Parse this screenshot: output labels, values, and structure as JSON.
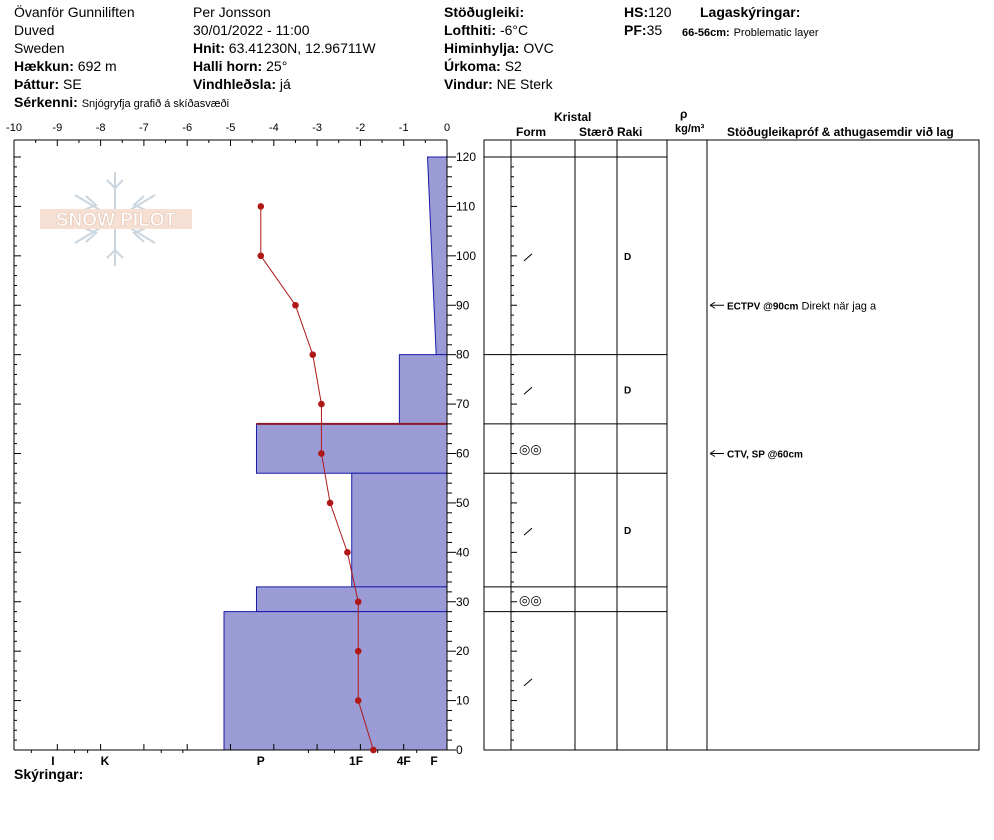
{
  "header": {
    "location": "Övanför Gunniliften",
    "area": "Duved",
    "country": "Sweden",
    "elevation_label": "Hækkun:",
    "elevation": "692 m",
    "aspect_label": "Þáttur:",
    "aspect": "SE",
    "features_label": "Sérkenni:",
    "features": "Snjógryfja grafið á skíðasvæði",
    "observer": "Per Jonsson",
    "datetime": "30/01/2022 - 11:00",
    "coords_label": "Hnit:",
    "coords": "63.41230N, 12.96711W",
    "slope_label": "Halli horn:",
    "slope": "25°",
    "wind_loading_label": "Vindhleðsla:",
    "wind_loading": "já",
    "stability_label": "Stöðugleiki:",
    "stability": "",
    "air_temp_label": "Lofthiti:",
    "air_temp": "-6°C",
    "sky_label": "Himinhylja:",
    "sky": "OVC",
    "precip_label": "Úrkoma:",
    "precip": "S2",
    "wind_label": "Vindur:",
    "wind": "NE Sterk",
    "hs_label": "HS:",
    "hs": "120",
    "pf_label": "PF:",
    "pf": "35",
    "layer_notes_label": "Lagaskýringar:",
    "layer_note_range": "66-56cm:",
    "layer_note_text": "Problematic layer"
  },
  "footer": {
    "notes_label": "Skýringar:"
  },
  "watermark": "SNOW PILOT",
  "columns": {
    "kristal": "Kristal",
    "form": "Form",
    "size": "Stærð",
    "moisture": "Raki",
    "rho": "ρ",
    "density_unit": "kg/m³",
    "tests": "Stöðugleikapróf & athugasemdir við lag"
  },
  "chart_data": {
    "type": "snow_profile",
    "temperature_axis": {
      "range": [
        -10,
        0
      ],
      "ticks": [
        "-10",
        "-9",
        "-8",
        "-7",
        "-6",
        "-5",
        "-4",
        "-3",
        "-2",
        "-1",
        "0"
      ]
    },
    "height_axis": {
      "range": [
        0,
        120
      ],
      "ticks": [
        "0",
        "10",
        "20",
        "30",
        "40",
        "50",
        "60",
        "70",
        "80",
        "90",
        "100",
        "110",
        "120"
      ]
    },
    "hardness_axis": {
      "labels": [
        "I",
        "K",
        "P",
        "1F",
        "4F",
        "F"
      ],
      "positions": [
        -9.1,
        -7.9,
        -4.3,
        -2.1,
        -1.0,
        -0.3
      ]
    },
    "temperature_profile": [
      {
        "height": 0,
        "temp": -1.7
      },
      {
        "height": 10,
        "temp": -2.05
      },
      {
        "height": 20,
        "temp": -2.05
      },
      {
        "height": 30,
        "temp": -2.05
      },
      {
        "height": 40,
        "temp": -2.3
      },
      {
        "height": 50,
        "temp": -2.7
      },
      {
        "height": 60,
        "temp": -2.9
      },
      {
        "height": 70,
        "temp": -2.9
      },
      {
        "height": 80,
        "temp": -3.1
      },
      {
        "height": 90,
        "temp": -3.5
      },
      {
        "height": 100,
        "temp": -4.3
      },
      {
        "height": 110,
        "temp": -4.3
      }
    ],
    "layers": [
      {
        "top": 120,
        "bottom": 80,
        "hardness_top": -0.45,
        "hardness_bottom": -0.25,
        "form": "/",
        "moisture": "D"
      },
      {
        "top": 80,
        "bottom": 66,
        "hardness": -1.1,
        "form": "/",
        "moisture": "D"
      },
      {
        "top": 66,
        "bottom": 56,
        "hardness": -4.4,
        "form": "◎◎",
        "moisture": ""
      },
      {
        "top": 56,
        "bottom": 33,
        "hardness": -2.2,
        "form": "/",
        "moisture": "D"
      },
      {
        "top": 33,
        "bottom": 28,
        "hardness": -4.4,
        "form": "◎◎",
        "moisture": ""
      },
      {
        "top": 28,
        "bottom": 0,
        "hardness": -5.15,
        "form": "/",
        "moisture": ""
      }
    ],
    "stability_tests": [
      {
        "height": 90,
        "code": "ECTPV @90cm",
        "comment": "Direkt när jag a"
      },
      {
        "height": 60,
        "code": "CTV, SP @60cm",
        "comment": ""
      }
    ]
  }
}
